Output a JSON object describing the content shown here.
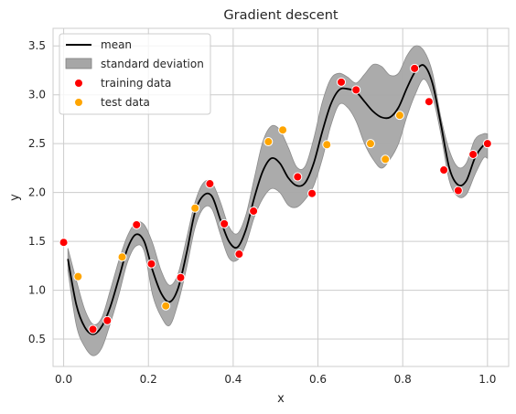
{
  "chart_data": {
    "type": "line",
    "title": "Gradient descent",
    "xlabel": "x",
    "ylabel": "y",
    "xlim": [
      -0.025,
      1.05
    ],
    "ylim": [
      0.22,
      3.68
    ],
    "grid": true,
    "legend_position": "top-left",
    "xticks": [
      "0.0",
      "0.2",
      "0.4",
      "0.6",
      "0.8",
      "1.0"
    ],
    "yticks": [
      "0.5",
      "1.0",
      "1.5",
      "2.0",
      "2.5",
      "3.0",
      "3.5"
    ],
    "series": [
      {
        "name": "mean",
        "kind": "line",
        "color": "#000000",
        "x": [
          0.01,
          0.03,
          0.05,
          0.07,
          0.09,
          0.11,
          0.13,
          0.15,
          0.17,
          0.19,
          0.21,
          0.23,
          0.25,
          0.27,
          0.29,
          0.31,
          0.33,
          0.35,
          0.37,
          0.39,
          0.41,
          0.43,
          0.45,
          0.47,
          0.49,
          0.51,
          0.53,
          0.55,
          0.57,
          0.59,
          0.61,
          0.63,
          0.65,
          0.67,
          0.69,
          0.71,
          0.73,
          0.75,
          0.77,
          0.79,
          0.81,
          0.83,
          0.85,
          0.87,
          0.89,
          0.91,
          0.93,
          0.95,
          0.97,
          0.99,
          1.0
        ],
        "y": [
          1.32,
          0.85,
          0.62,
          0.55,
          0.63,
          0.83,
          1.12,
          1.42,
          1.57,
          1.5,
          1.2,
          0.97,
          0.88,
          1.02,
          1.38,
          1.8,
          1.97,
          1.96,
          1.72,
          1.5,
          1.44,
          1.62,
          1.95,
          2.22,
          2.35,
          2.3,
          2.15,
          2.07,
          2.1,
          2.3,
          2.62,
          2.9,
          3.05,
          3.06,
          3.03,
          2.93,
          2.83,
          2.77,
          2.77,
          2.87,
          3.07,
          3.24,
          3.3,
          3.12,
          2.7,
          2.25,
          2.08,
          2.12,
          2.35,
          2.48,
          2.48
        ]
      },
      {
        "name": "standard deviation",
        "kind": "band",
        "color": "#a6a6a6",
        "x": [
          0.01,
          0.03,
          0.05,
          0.07,
          0.09,
          0.11,
          0.13,
          0.15,
          0.17,
          0.19,
          0.21,
          0.23,
          0.25,
          0.27,
          0.29,
          0.31,
          0.33,
          0.35,
          0.37,
          0.39,
          0.41,
          0.43,
          0.45,
          0.47,
          0.49,
          0.51,
          0.53,
          0.55,
          0.57,
          0.59,
          0.61,
          0.63,
          0.65,
          0.67,
          0.69,
          0.71,
          0.73,
          0.75,
          0.77,
          0.79,
          0.81,
          0.83,
          0.85,
          0.87,
          0.89,
          0.91,
          0.93,
          0.95,
          0.97,
          0.99,
          1.0
        ],
        "upper": [
          1.43,
          1.1,
          0.8,
          0.65,
          0.72,
          1.0,
          1.3,
          1.55,
          1.69,
          1.67,
          1.48,
          1.2,
          1.05,
          1.17,
          1.53,
          1.9,
          2.1,
          2.1,
          1.9,
          1.65,
          1.58,
          1.77,
          2.15,
          2.52,
          2.68,
          2.64,
          2.46,
          2.26,
          2.27,
          2.55,
          2.92,
          3.16,
          3.22,
          3.18,
          3.12,
          3.21,
          3.31,
          3.29,
          3.2,
          3.22,
          3.4,
          3.5,
          3.45,
          3.23,
          2.77,
          2.43,
          2.26,
          2.3,
          2.54,
          2.6,
          2.6
        ],
        "lower": [
          1.2,
          0.64,
          0.42,
          0.33,
          0.41,
          0.66,
          0.95,
          1.28,
          1.45,
          1.4,
          0.95,
          0.73,
          0.64,
          0.87,
          1.23,
          1.64,
          1.84,
          1.83,
          1.57,
          1.33,
          1.31,
          1.47,
          1.75,
          1.94,
          2.04,
          2.0,
          1.87,
          1.85,
          1.93,
          2.07,
          2.34,
          2.68,
          2.9,
          2.87,
          2.73,
          2.5,
          2.34,
          2.25,
          2.34,
          2.5,
          2.78,
          3.01,
          3.16,
          2.99,
          2.6,
          2.12,
          1.96,
          1.98,
          2.18,
          2.35,
          2.35
        ]
      },
      {
        "name": "training data",
        "kind": "scatter",
        "color": "#ff0000",
        "x": [
          0.0,
          0.069,
          0.103,
          0.172,
          0.207,
          0.276,
          0.345,
          0.379,
          0.414,
          0.448,
          0.552,
          0.586,
          0.655,
          0.69,
          0.828,
          0.862,
          0.897,
          0.931,
          0.966,
          1.0
        ],
        "y": [
          1.49,
          0.6,
          0.69,
          1.67,
          1.27,
          1.13,
          2.09,
          1.68,
          1.37,
          1.81,
          2.16,
          1.99,
          3.13,
          3.05,
          3.27,
          2.93,
          2.23,
          2.02,
          2.39,
          2.5
        ]
      },
      {
        "name": "test data",
        "kind": "scatter",
        "color": "#ffa500",
        "x": [
          0.034,
          0.138,
          0.241,
          0.31,
          0.483,
          0.517,
          0.621,
          0.724,
          0.759,
          0.793
        ],
        "y": [
          1.14,
          1.34,
          0.84,
          1.84,
          2.52,
          2.64,
          2.49,
          2.5,
          2.34,
          2.79
        ]
      }
    ]
  }
}
